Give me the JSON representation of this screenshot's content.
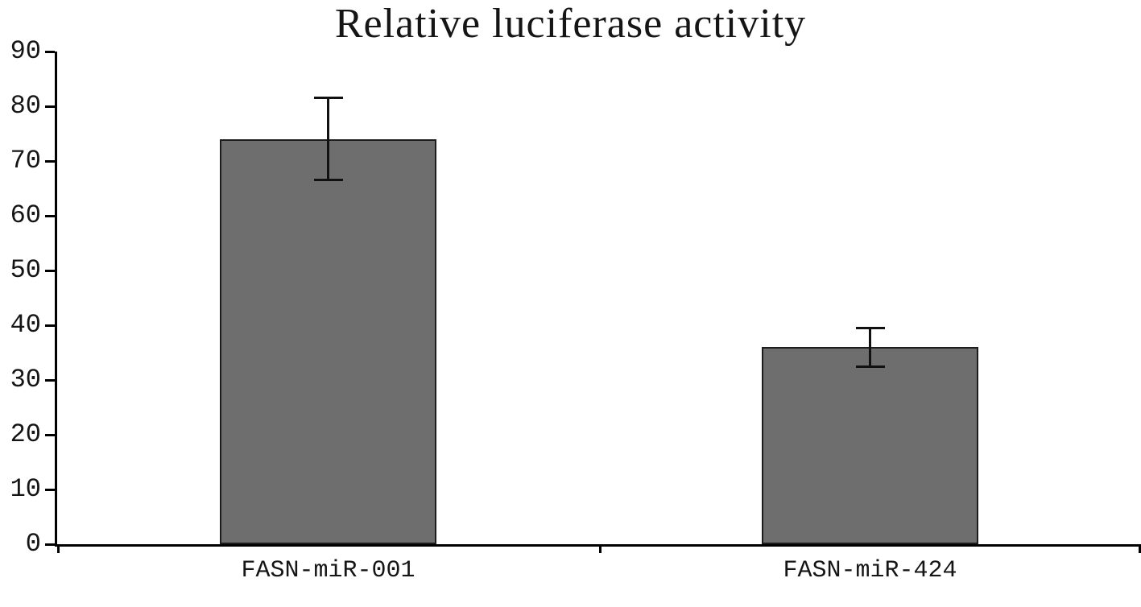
{
  "chart_data": {
    "type": "bar",
    "title": "Relative luciferase activity",
    "categories": [
      "FASN-miR-001",
      "FASN-miR-424"
    ],
    "values": [
      74,
      36
    ],
    "errors": [
      7.5,
      3.5
    ],
    "ylim": [
      0,
      90
    ],
    "yticks": [
      0,
      10,
      20,
      30,
      40,
      50,
      60,
      70,
      80,
      90
    ],
    "xlabel": "",
    "ylabel": "",
    "grid": false,
    "legend": false,
    "bar_color": "#6e6e6e",
    "bar_border_color": "#1c1c1c",
    "error_bar_color": "#111111",
    "axis_color": "#000000"
  }
}
